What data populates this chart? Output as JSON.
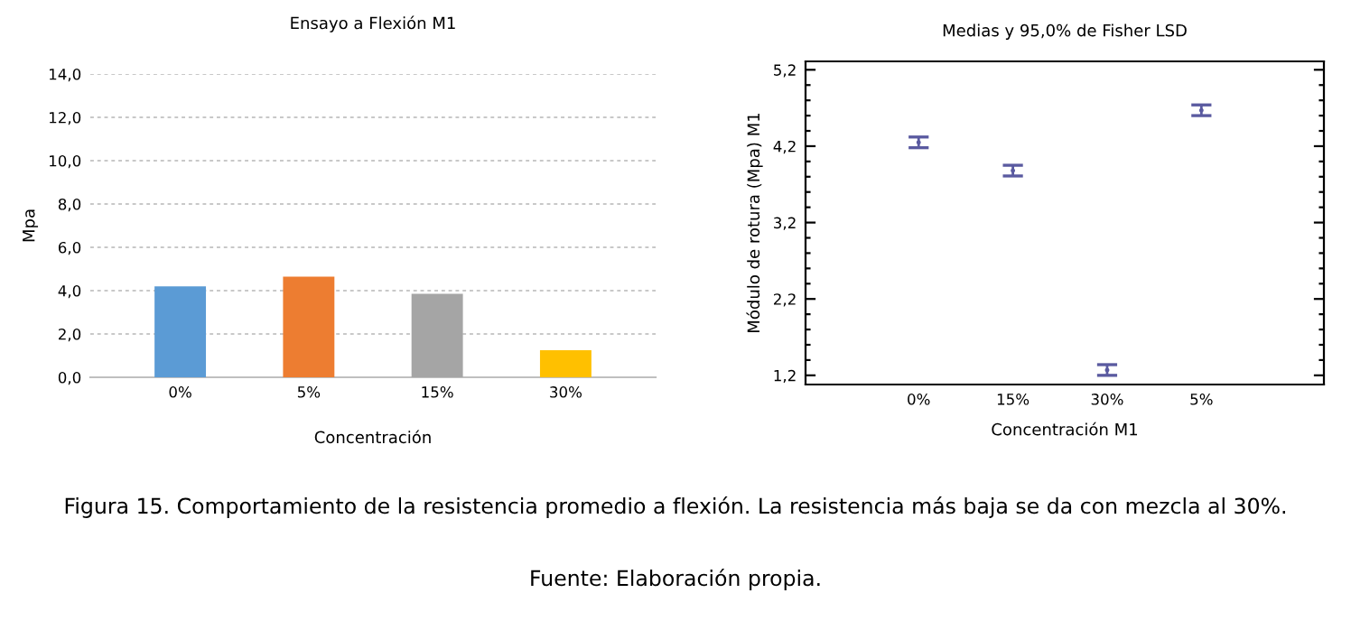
{
  "chart_data": [
    {
      "type": "bar",
      "title": "Ensayo a Flexión M1",
      "xlabel": "Concentración",
      "ylabel": "Mpa",
      "categories": [
        "0%",
        "5%",
        "15%",
        "30%"
      ],
      "values": [
        4.2,
        4.65,
        3.85,
        1.25
      ],
      "colors": [
        "#5b9bd5",
        "#ed7d31",
        "#a5a5a5",
        "#ffc000"
      ],
      "ylim": [
        0,
        14
      ],
      "yticks": [
        {
          "value": 0,
          "label": "0,0"
        },
        {
          "value": 2,
          "label": "2,0"
        },
        {
          "value": 4,
          "label": "4,0"
        },
        {
          "value": 6,
          "label": "6,0"
        },
        {
          "value": 8,
          "label": "8,0"
        },
        {
          "value": 10,
          "label": "10,0"
        },
        {
          "value": 12,
          "label": "12,0"
        },
        {
          "value": 14,
          "label": "14,0"
        }
      ],
      "grid": "y",
      "annotations": [
        "Figura 15. Comportamiento de la resistencia promedio a flexión. La resistencia más baja se da con mezcla al 30%.",
        "Fuente: Elaboración propia."
      ]
    },
    {
      "type": "scatter",
      "title": "Medias y 95,0% de Fisher LSD",
      "xlabel": "Concentración M1",
      "ylabel": "Módulo de rotura (Mpa) M1",
      "categories": [
        "0%",
        "15%",
        "30%",
        "5%"
      ],
      "values": [
        4.25,
        3.88,
        1.27,
        4.67
      ],
      "errors": [
        0.07,
        0.07,
        0.07,
        0.07
      ],
      "color": "#5a5aa0",
      "marker": "none",
      "ylim": [
        1.08,
        5.31
      ],
      "yticks": [
        {
          "value": 1.2,
          "label": "1,2"
        },
        {
          "value": 1.4,
          "label": null
        },
        {
          "value": 1.6,
          "label": null
        },
        {
          "value": 1.8,
          "label": null
        },
        {
          "value": 2.0,
          "label": null
        },
        {
          "value": 2.2,
          "label": "2,2"
        },
        {
          "value": 2.4,
          "label": null
        },
        {
          "value": 2.6,
          "label": null
        },
        {
          "value": 2.8,
          "label": null
        },
        {
          "value": 3.0,
          "label": null
        },
        {
          "value": 3.2,
          "label": "3,2"
        },
        {
          "value": 3.4,
          "label": null
        },
        {
          "value": 3.6,
          "label": null
        },
        {
          "value": 3.8,
          "label": null
        },
        {
          "value": 4.0,
          "label": null
        },
        {
          "value": 4.2,
          "label": "4,2"
        },
        {
          "value": 4.4,
          "label": null
        },
        {
          "value": 4.6,
          "label": null
        },
        {
          "value": 4.8,
          "label": null
        },
        {
          "value": 5.0,
          "label": null
        },
        {
          "value": 5.2,
          "label": "5,2"
        }
      ]
    }
  ]
}
